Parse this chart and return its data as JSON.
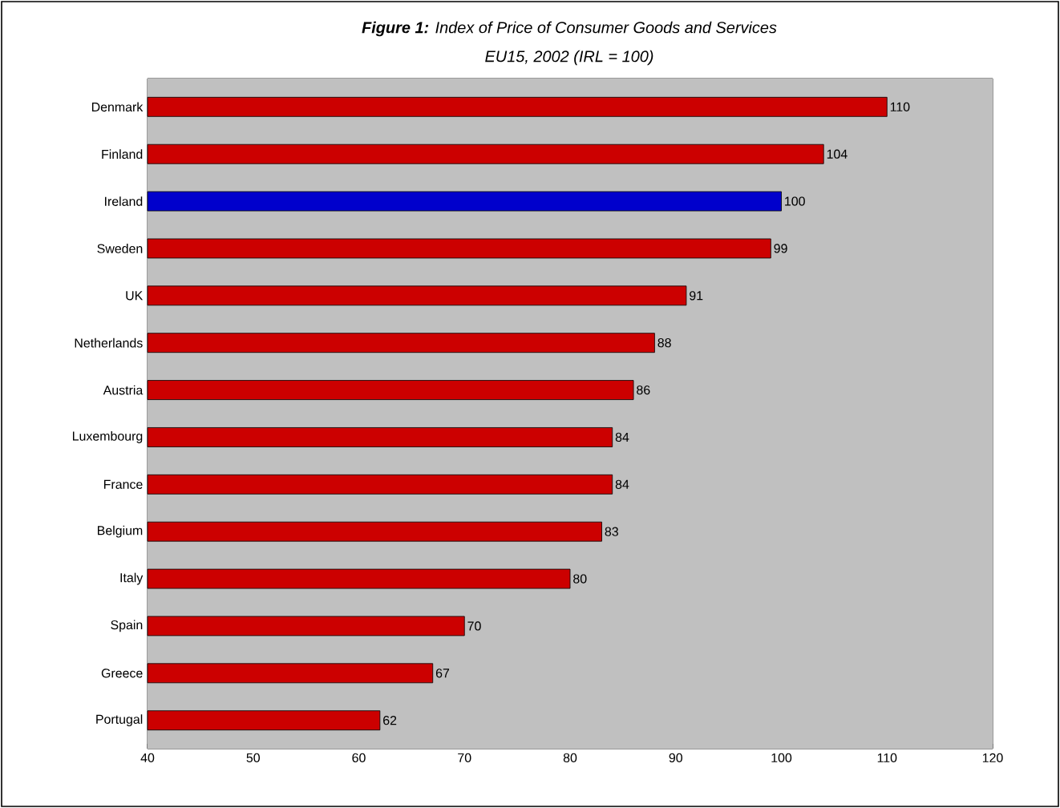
{
  "chart_data": {
    "type": "bar",
    "orientation": "horizontal",
    "title": "**Figure 1:** Index of Price of Consumer Goods and Services",
    "subtitle": "EU15, 2002 (IRL = 100)",
    "categories": [
      "Denmark",
      "Finland",
      "Ireland",
      "Sweden",
      "UK",
      "Netherlands",
      "Austria",
      "Luxembourg",
      "France",
      "Belgium",
      "Italy",
      "Spain",
      "Greece",
      "Portugal"
    ],
    "values": [
      110,
      104,
      100,
      99,
      91,
      88,
      86,
      84,
      84,
      83,
      80,
      70,
      67,
      62
    ],
    "colors": [
      "#cc0000",
      "#cc0000",
      "#0000cc",
      "#cc0000",
      "#cc0000",
      "#cc0000",
      "#cc0000",
      "#cc0000",
      "#cc0000",
      "#cc0000",
      "#cc0000",
      "#cc0000",
      "#cc0000",
      "#cc0000"
    ],
    "xlim": [
      40,
      120
    ],
    "xticks": [
      40,
      50,
      60,
      70,
      80,
      90,
      100,
      110,
      120
    ],
    "data_labels": true
  }
}
